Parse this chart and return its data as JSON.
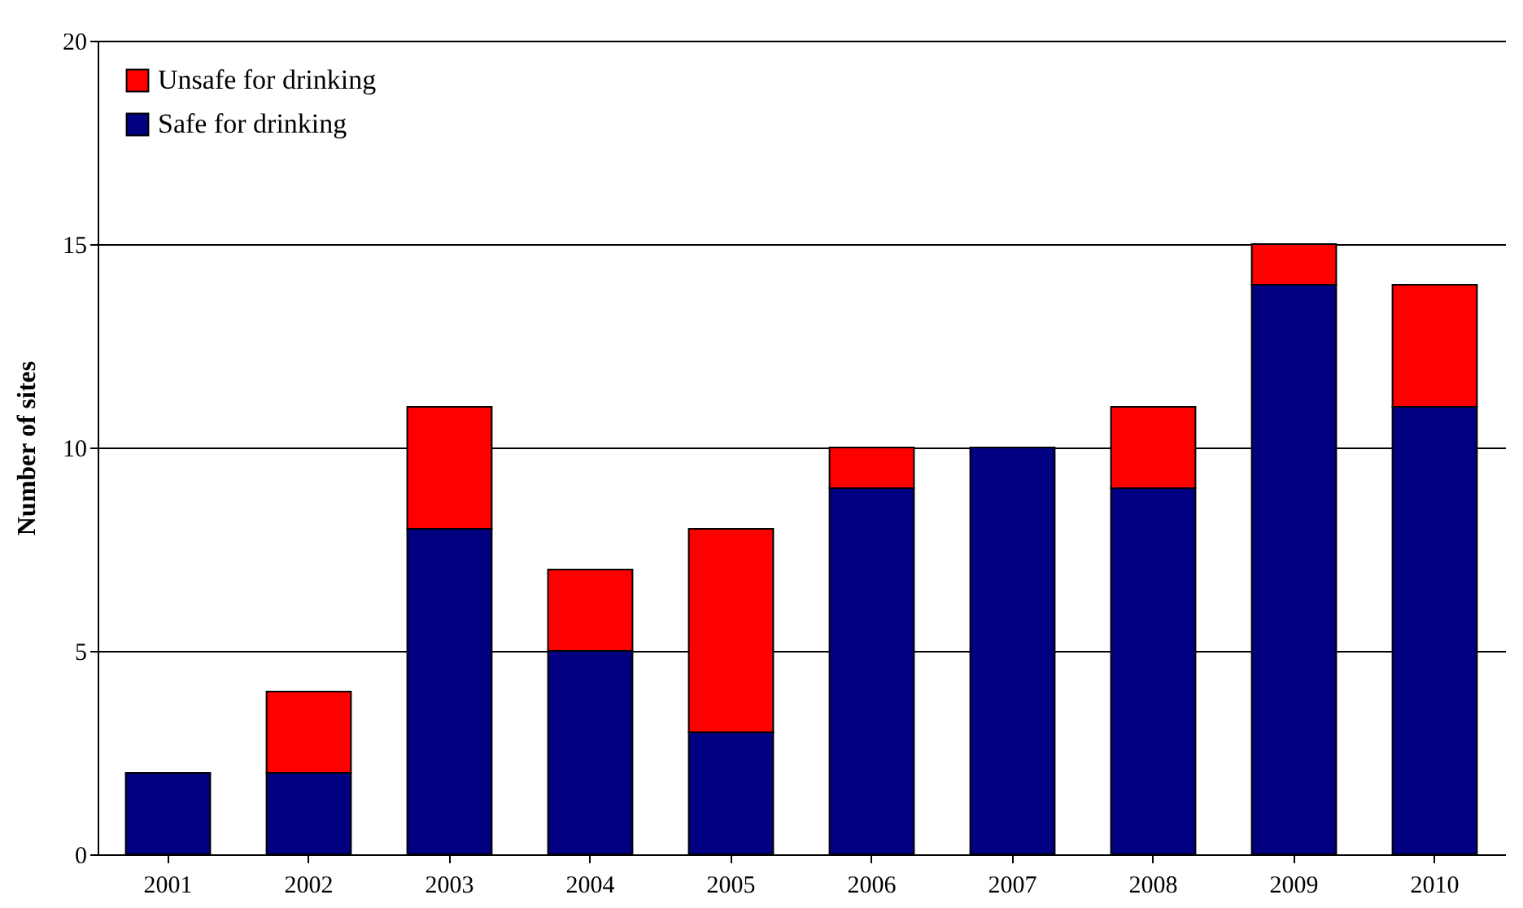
{
  "chart_data": {
    "type": "bar",
    "stacked": true,
    "ylabel": "Number of sites",
    "categories": [
      "2001",
      "2002",
      "2003",
      "2004",
      "2005",
      "2006",
      "2007",
      "2008",
      "2009",
      "2010"
    ],
    "series": [
      {
        "name": "Safe for drinking",
        "color": "#000080",
        "values": [
          2,
          2,
          8,
          5,
          3,
          9,
          10,
          9,
          14,
          11
        ]
      },
      {
        "name": "Unsafe for drinking",
        "color": "#ff0000",
        "values": [
          null,
          2,
          3,
          2,
          5,
          1,
          null,
          2,
          1,
          3
        ]
      }
    ],
    "ylim": [
      0,
      20
    ],
    "yticks": [
      0,
      5,
      10,
      15,
      20
    ],
    "grid": "y",
    "legend": "top left"
  }
}
